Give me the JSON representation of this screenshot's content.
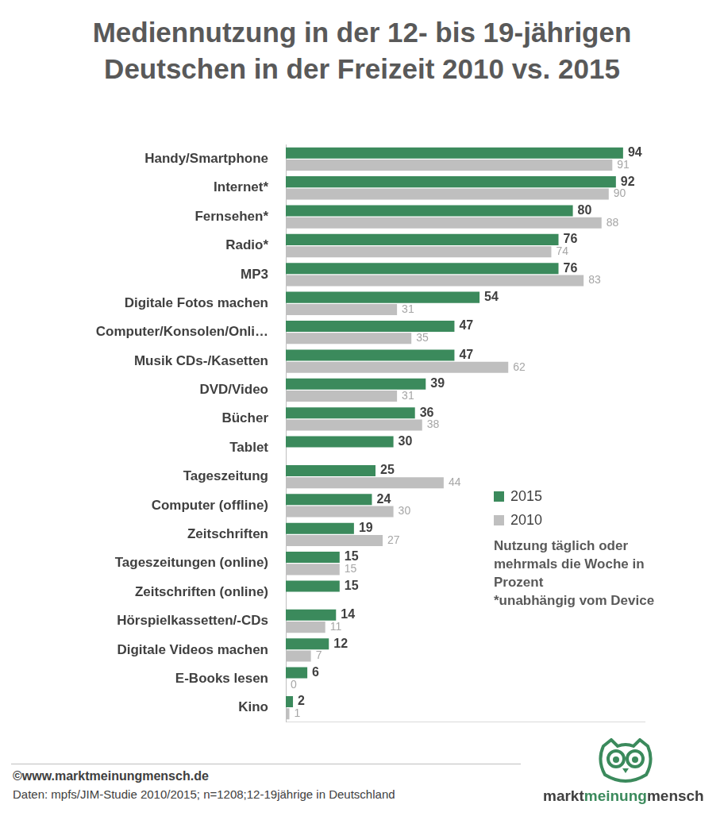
{
  "chart_data": {
    "type": "bar",
    "orientation": "horizontal",
    "title": [
      "Mediennutzung in der 12- bis 19-jährigen",
      "Deutschen in der Freizeit 2010 vs. 2015"
    ],
    "categories": [
      "Handy/Smartphone",
      "Internet*",
      "Fernsehen*",
      "Radio*",
      "MP3",
      "Digitale Fotos machen",
      "Computer/Konsolen/Onli…",
      "Musik CDs-/Kasetten",
      "DVD/Video",
      "Bücher",
      "Tablet",
      "Tageszeitung",
      "Computer (offline)",
      "Zeitschriften",
      "Tageszeitungen (online)",
      "Zeitschriften (online)",
      "Hörspielkassetten/-CDs",
      "Digitale Videos machen",
      "E-Books lesen",
      "Kino"
    ],
    "series": [
      {
        "name": "2015",
        "color": "#3b8a5c",
        "values": [
          94,
          92,
          80,
          76,
          76,
          54,
          47,
          47,
          39,
          36,
          30,
          25,
          24,
          19,
          15,
          15,
          14,
          12,
          6,
          2
        ]
      },
      {
        "name": "2010",
        "color": "#bfbfbf",
        "values": [
          91,
          90,
          88,
          74,
          83,
          31,
          35,
          62,
          31,
          38,
          null,
          44,
          30,
          27,
          15,
          null,
          11,
          7,
          0,
          1
        ]
      }
    ],
    "xlim": [
      0,
      100
    ],
    "grid": false,
    "legend": "right",
    "data_labels": true,
    "tick_labels": "y",
    "annotations": [
      "Nutzung täglich oder mehrmals die Woche in Prozent",
      "*unabhängig vom Device"
    ],
    "footer": [
      "©www.marktmeinungmensch.de",
      "Daten: mpfs/JIM-Studie 2010/2015; n=1208;12-19jährige in Deutschland"
    ],
    "logo": [
      "markt",
      "meinung",
      "mensch"
    ]
  }
}
